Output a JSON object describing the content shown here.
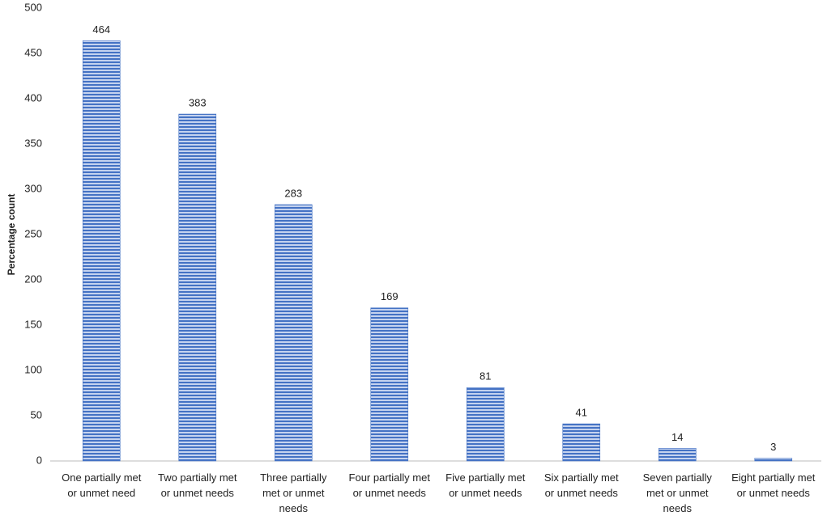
{
  "chart_data": {
    "type": "bar",
    "y_label": "Percentage count",
    "categories": [
      "One partially met\nor unmet need",
      "Two partially met\nor unmet needs",
      "Three partially\nmet or unmet\nneeds",
      "Four partially met\nor unmet needs",
      "Five partially met\nor unmet needs",
      "Six partially met\nor unmet needs",
      "Seven partially\nmet or unmet\nneeds",
      "Eight partially met\nor unmet needs"
    ],
    "values": [
      464,
      383,
      283,
      169,
      81,
      41,
      14,
      3
    ],
    "color": "#4472c4",
    "ylim": [
      0,
      500
    ],
    "yticks": [
      0,
      50,
      100,
      150,
      200,
      250,
      300,
      350,
      400,
      450,
      500
    ],
    "grid": false
  }
}
